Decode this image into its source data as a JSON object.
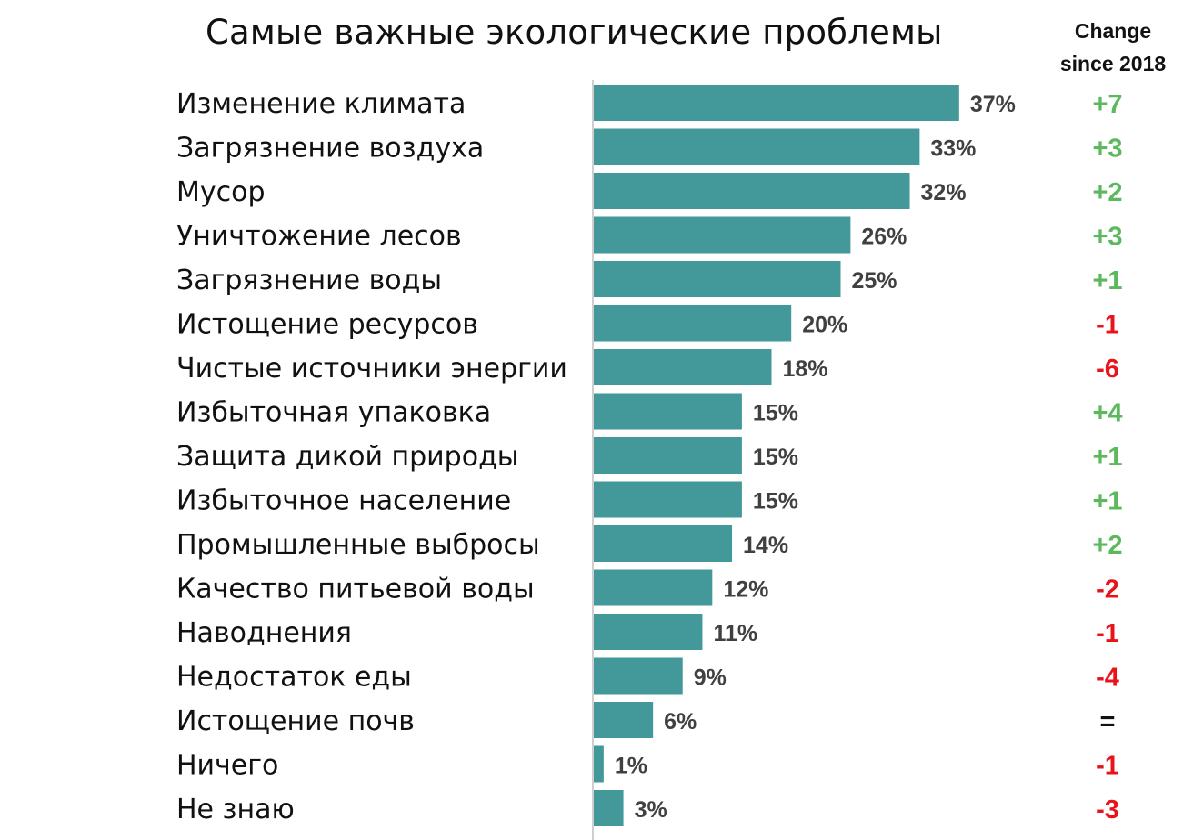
{
  "chart_data": {
    "type": "bar",
    "orientation": "horizontal",
    "title": "Самые важные экологические проблемы",
    "value_suffix": "%",
    "categories": [
      "Изменение климата",
      "Загрязнение воздуха",
      "Мусор",
      "Уничтожение лесов",
      "Загрязнение воды",
      "Истощение ресурсов",
      "Чистые источники энергии",
      "Избыточная упаковка",
      "Защита дикой природы",
      "Избыточное население",
      "Промышленные выбросы",
      "Качество питьевой воды",
      "Наводнения",
      "Недостаток еды",
      "Истощение почв",
      "Ничего",
      "Не знаю"
    ],
    "values": [
      37,
      33,
      32,
      26,
      25,
      20,
      18,
      15,
      15,
      15,
      14,
      12,
      11,
      9,
      6,
      1,
      3
    ],
    "change_header": [
      "Change",
      "since 2018"
    ],
    "changes": [
      "+7",
      "+3",
      "+2",
      "+3",
      "+1",
      "-1",
      "-6",
      "+4",
      "+1",
      "+1",
      "+2",
      "-2",
      "-1",
      "-4",
      "=",
      "-1",
      "-3"
    ],
    "xlim": [
      0,
      37
    ],
    "grid": false,
    "legend": "none",
    "colors": {
      "bar": "#43999a",
      "value_label": "#404040",
      "category_label": "#111111",
      "positive_change": "#5cb85c",
      "negative_change": "#e8141c",
      "neutral_change": "#111111",
      "axis": "#bfbfbf"
    }
  }
}
